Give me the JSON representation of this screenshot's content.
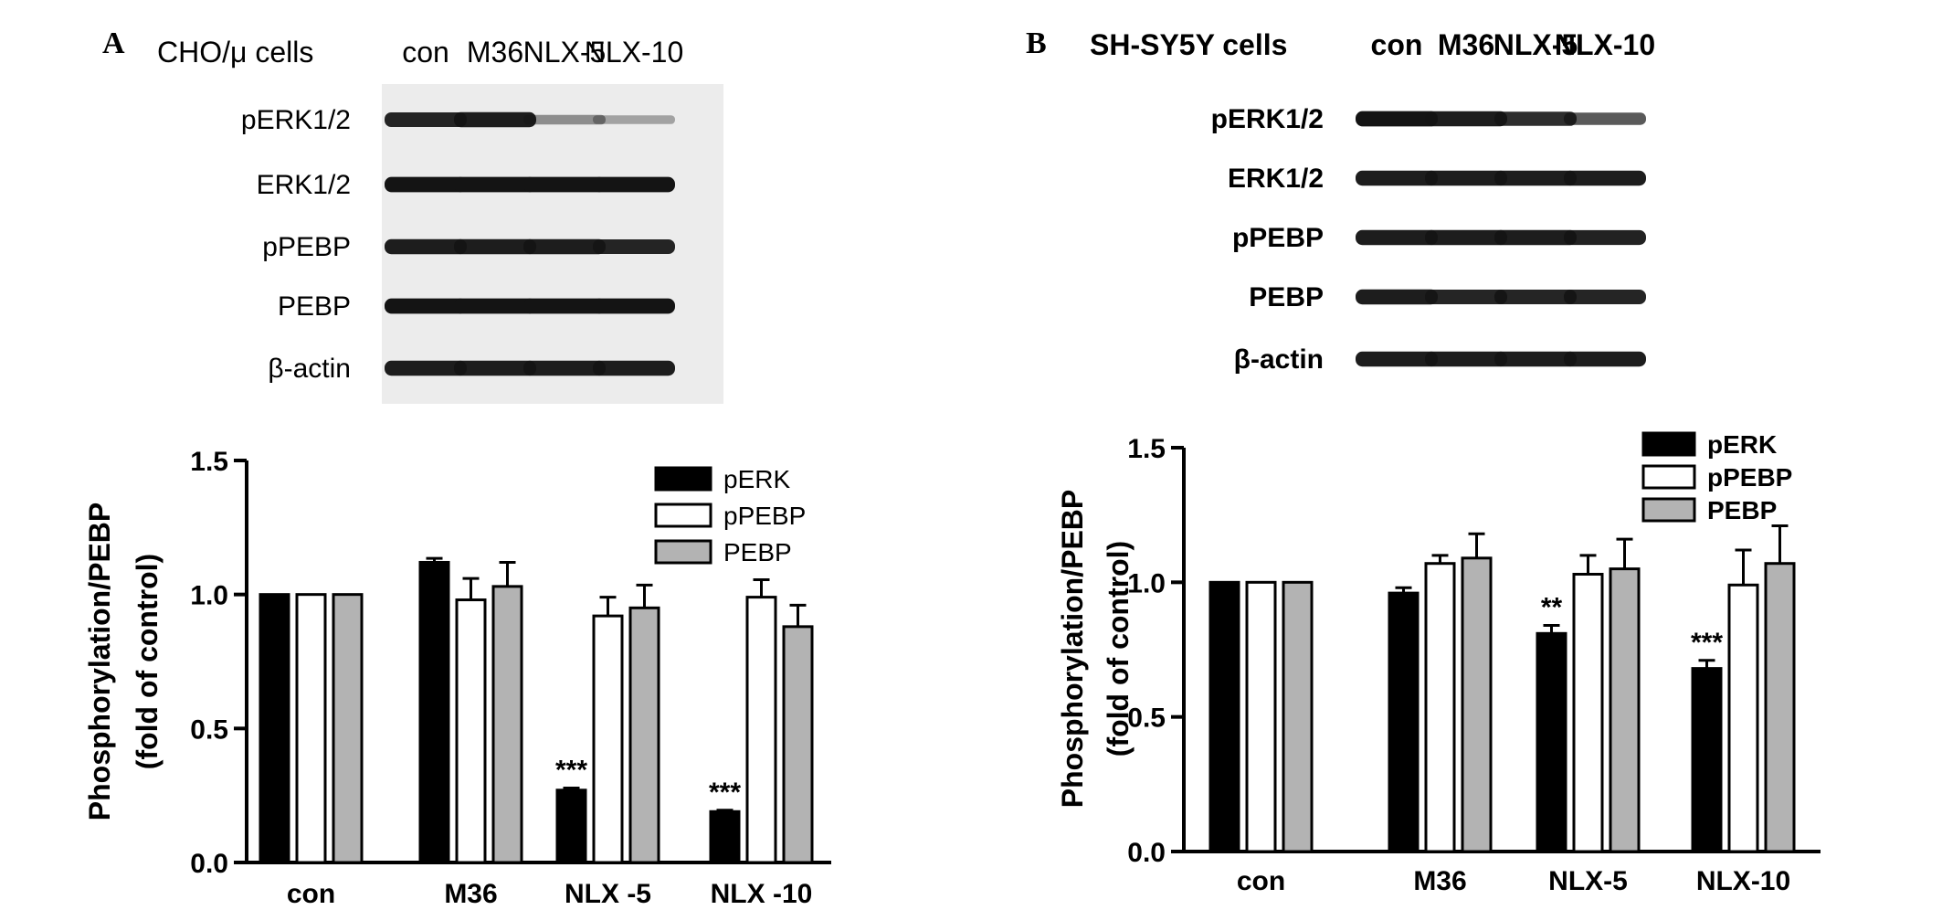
{
  "panels": [
    {
      "letter": "A",
      "cell_label": "CHO/μ cells",
      "lanes": [
        "con",
        "M36",
        "NLX-5",
        "NLX-10"
      ],
      "blots": [
        {
          "label": "pERK1/2",
          "intensity": [
            0.9,
            0.95,
            0.25,
            0.12
          ]
        },
        {
          "label": "ERK1/2",
          "intensity": [
            1.0,
            1.0,
            1.0,
            1.0
          ]
        },
        {
          "label": "pPEBP",
          "intensity": [
            0.95,
            0.95,
            0.95,
            0.9
          ]
        },
        {
          "label": "PEBP",
          "intensity": [
            1.0,
            1.0,
            1.0,
            1.0
          ]
        },
        {
          "label": "β-actin",
          "intensity": [
            0.95,
            0.95,
            0.95,
            0.95
          ]
        }
      ],
      "chart_data": {
        "type": "bar",
        "categories": [
          "con",
          "M36",
          "NLX -5",
          "NLX -10"
        ],
        "series": [
          {
            "name": "pERK",
            "values": [
              1.0,
              1.12,
              0.27,
              0.19
            ],
            "errors": [
              0,
              0.015,
              0.008,
              0.005
            ]
          },
          {
            "name": "pPEBP",
            "values": [
              1.0,
              0.98,
              0.92,
              0.99
            ],
            "errors": [
              0,
              0.08,
              0.07,
              0.065
            ]
          },
          {
            "name": "PEBP",
            "values": [
              1.0,
              1.03,
              0.95,
              0.88
            ],
            "errors": [
              0,
              0.09,
              0.085,
              0.08
            ]
          }
        ],
        "annotations": [
          "",
          "",
          "***",
          "***"
        ],
        "ylabel_line1": "Phosphorylation/PEBP",
        "ylabel_line2": "(fold of control)",
        "yticks": [
          "0.0",
          "0.5",
          "1.0",
          "1.5"
        ],
        "ylim": [
          0,
          1.5
        ],
        "legend_position": "top-right"
      }
    },
    {
      "letter": "B",
      "cell_label": "SH-SY5Y cells",
      "lanes": [
        "con",
        "M36",
        "NLX-5",
        "NLX-10"
      ],
      "blots": [
        {
          "label": "pERK1/2",
          "intensity": [
            1.0,
            0.95,
            0.85,
            0.6
          ]
        },
        {
          "label": "ERK1/2",
          "intensity": [
            0.95,
            0.95,
            0.95,
            0.95
          ]
        },
        {
          "label": "pPEBP",
          "intensity": [
            0.95,
            0.95,
            0.95,
            0.92
          ]
        },
        {
          "label": "PEBP",
          "intensity": [
            0.95,
            0.9,
            0.9,
            0.9
          ]
        },
        {
          "label": "β-actin",
          "intensity": [
            0.95,
            0.95,
            0.95,
            0.95
          ]
        }
      ],
      "chart_data": {
        "type": "bar",
        "categories": [
          "con",
          "M36",
          "NLX-5",
          "NLX-10"
        ],
        "series": [
          {
            "name": "pERK",
            "values": [
              1.0,
              0.96,
              0.81,
              0.68
            ],
            "errors": [
              0,
              0.02,
              0.03,
              0.03
            ]
          },
          {
            "name": "pPEBP",
            "values": [
              1.0,
              1.07,
              1.03,
              0.99
            ],
            "errors": [
              0,
              0.03,
              0.07,
              0.13
            ]
          },
          {
            "name": "PEBP",
            "values": [
              1.0,
              1.09,
              1.05,
              1.07
            ],
            "errors": [
              0,
              0.09,
              0.11,
              0.14
            ]
          }
        ],
        "annotations": [
          "",
          "",
          "**",
          "***"
        ],
        "ylabel_line1": "Phosphorylation/PEBP",
        "ylabel_line2": "(fold of control)",
        "yticks": [
          "0.0",
          "0.5",
          "1.0",
          "1.5"
        ],
        "ylim": [
          0,
          1.5
        ],
        "legend_position": "top-right"
      }
    }
  ],
  "colors": {
    "pERK": "#000000",
    "pPEBP": "#ffffff",
    "PEBP": "#b3b3b3",
    "band": "#141414",
    "blot_bg": "#ececec"
  }
}
